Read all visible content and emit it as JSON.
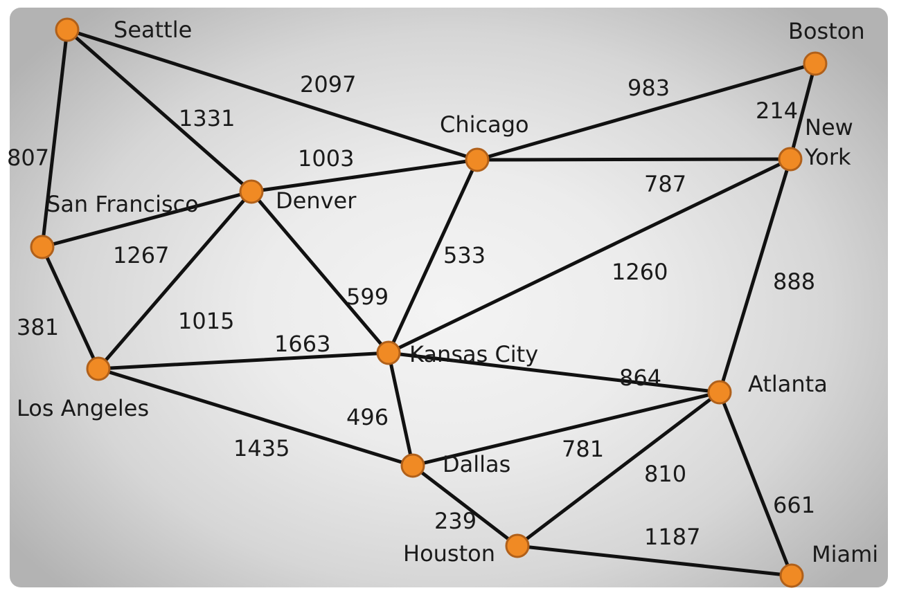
{
  "nodes": [
    {
      "id": "seattle",
      "label": "Seattle"
    },
    {
      "id": "boston",
      "label": "Boston"
    },
    {
      "id": "chicago",
      "label": "Chicago"
    },
    {
      "id": "new-york",
      "label_line1": "New",
      "label_line2": "York"
    },
    {
      "id": "san-francisco",
      "label": "San Francisco"
    },
    {
      "id": "denver",
      "label": "Denver"
    },
    {
      "id": "kansas-city",
      "label": "Kansas City"
    },
    {
      "id": "los-angeles",
      "label": "Los Angeles"
    },
    {
      "id": "atlanta",
      "label": "Atlanta"
    },
    {
      "id": "dallas",
      "label": "Dallas"
    },
    {
      "id": "houston",
      "label": "Houston"
    },
    {
      "id": "miami",
      "label": "Miami"
    }
  ],
  "edges": [
    {
      "from": "seattle",
      "to": "chicago",
      "weight": "2097"
    },
    {
      "from": "seattle",
      "to": "denver",
      "weight": "1331"
    },
    {
      "from": "seattle",
      "to": "san-francisco",
      "weight": "807"
    },
    {
      "from": "chicago",
      "to": "boston",
      "weight": "983"
    },
    {
      "from": "boston",
      "to": "new-york",
      "weight": "214"
    },
    {
      "from": "denver",
      "to": "chicago",
      "weight": "1003"
    },
    {
      "from": "chicago",
      "to": "new-york",
      "weight": "787"
    },
    {
      "from": "san-francisco",
      "to": "denver",
      "weight": "1267"
    },
    {
      "from": "chicago",
      "to": "kansas-city",
      "weight": "533"
    },
    {
      "from": "kansas-city",
      "to": "new-york",
      "weight": "1260"
    },
    {
      "from": "new-york",
      "to": "atlanta",
      "weight": "888"
    },
    {
      "from": "san-francisco",
      "to": "los-angeles",
      "weight": "381"
    },
    {
      "from": "los-angeles",
      "to": "denver",
      "weight": "1015"
    },
    {
      "from": "denver",
      "to": "kansas-city",
      "weight": "599"
    },
    {
      "from": "los-angeles",
      "to": "kansas-city",
      "weight": "1663"
    },
    {
      "from": "kansas-city",
      "to": "atlanta",
      "weight": "864"
    },
    {
      "from": "kansas-city",
      "to": "dallas",
      "weight": "496"
    },
    {
      "from": "los-angeles",
      "to": "dallas",
      "weight": "1435"
    },
    {
      "from": "dallas",
      "to": "atlanta",
      "weight": "781"
    },
    {
      "from": "atlanta",
      "to": "houston",
      "weight": "810"
    },
    {
      "from": "atlanta",
      "to": "miami",
      "weight": "661"
    },
    {
      "from": "dallas",
      "to": "houston",
      "weight": "239"
    },
    {
      "from": "houston",
      "to": "miami",
      "weight": "1187"
    }
  ],
  "colors": {
    "node_fill": "#f08a24",
    "node_stroke": "#b0601a",
    "edge": "#111111",
    "text": "#1a1a1a"
  }
}
